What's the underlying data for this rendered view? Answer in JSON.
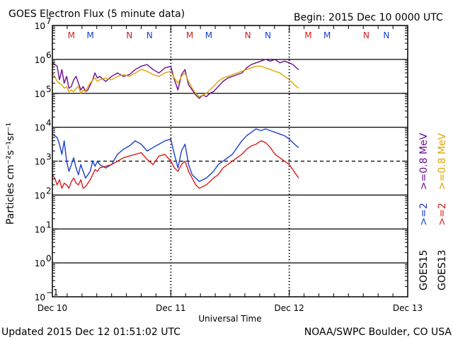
{
  "title": "GOES Electron Flux (5 minute data)",
  "begin": "Begin: 2015 Dec 10 0000 UTC",
  "updated": "Updated 2015 Dec 12 01:51:02 UTC",
  "credit": "NOAA/SWPC Boulder, CO USA",
  "colors": {
    "purple": "#6a0d91",
    "gold": "#e0a400",
    "blue": "#1a3fd0",
    "red": "#d81c1c",
    "black": "#000000"
  },
  "chart_data": {
    "type": "line",
    "title": "GOES Electron Flux (5 minute data)",
    "xlabel": "Universal Time",
    "ylabel": "Particles cm⁻²s⁻¹sr⁻¹",
    "xlim": [
      0,
      3
    ],
    "ylim": [
      -1,
      7
    ],
    "yscale": "log10",
    "x_ticks": [
      {
        "x": 0,
        "label": "Dec 10"
      },
      {
        "x": 1,
        "label": "Dec 11"
      },
      {
        "x": 2,
        "label": "Dec 12"
      },
      {
        "x": 3,
        "label": "Dec 13"
      }
    ],
    "y_ticks": [
      {
        "exp": 7,
        "label": "10",
        "sup": "7"
      },
      {
        "exp": 6,
        "label": "10",
        "sup": "6"
      },
      {
        "exp": 5,
        "label": "10",
        "sup": "5"
      },
      {
        "exp": 4,
        "label": "10",
        "sup": "4"
      },
      {
        "exp": 3,
        "label": "10",
        "sup": "3"
      },
      {
        "exp": 2,
        "label": "10",
        "sup": "2"
      },
      {
        "exp": 1,
        "label": "10",
        "sup": "1"
      },
      {
        "exp": 0,
        "label": "10",
        "sup": "0"
      },
      {
        "exp": -1,
        "label": "10",
        "sup": "−1"
      }
    ],
    "reference_lines": [
      {
        "exp": 3,
        "style": "dashed"
      }
    ],
    "markers": [
      {
        "x": 0.16,
        "label": "M",
        "color": "red"
      },
      {
        "x": 0.32,
        "label": "M",
        "color": "blue"
      },
      {
        "x": 0.65,
        "label": "N",
        "color": "red"
      },
      {
        "x": 0.82,
        "label": "N",
        "color": "blue"
      },
      {
        "x": 1.16,
        "label": "M",
        "color": "red"
      },
      {
        "x": 1.32,
        "label": "M",
        "color": "blue"
      },
      {
        "x": 1.65,
        "label": "N",
        "color": "red"
      },
      {
        "x": 1.82,
        "label": "N",
        "color": "blue"
      },
      {
        "x": 2.16,
        "label": "M",
        "color": "red"
      },
      {
        "x": 2.32,
        "label": "M",
        "color": "blue"
      },
      {
        "x": 2.65,
        "label": "N",
        "color": "red"
      },
      {
        "x": 2.82,
        "label": "N",
        "color": "blue"
      }
    ],
    "legend": [
      {
        "label": "GOES15",
        "part1": ">=2",
        "part2": ">=0.8 MeV",
        "color1": "blue",
        "color2": "purple"
      },
      {
        "label": "GOES13",
        "part1": ">=2",
        "part2": ">=0.8 MeV",
        "color1": "red",
        "color2": "gold"
      }
    ],
    "series": [
      {
        "name": "GOES15 >=0.8 MeV",
        "color": "purple",
        "x": [
          0.0,
          0.02,
          0.04,
          0.06,
          0.08,
          0.1,
          0.12,
          0.14,
          0.16,
          0.18,
          0.2,
          0.22,
          0.24,
          0.26,
          0.28,
          0.3,
          0.32,
          0.34,
          0.36,
          0.38,
          0.4,
          0.45,
          0.5,
          0.55,
          0.6,
          0.65,
          0.7,
          0.75,
          0.8,
          0.85,
          0.9,
          0.95,
          1.0,
          1.03,
          1.06,
          1.09,
          1.12,
          1.15,
          1.18,
          1.21,
          1.24,
          1.27,
          1.3,
          1.33,
          1.36,
          1.4,
          1.44,
          1.48,
          1.52,
          1.56,
          1.6,
          1.64,
          1.68,
          1.72,
          1.76,
          1.8,
          1.84,
          1.88,
          1.92,
          1.96,
          2.0,
          2.03,
          2.06,
          2.08
        ],
        "y": [
          5.9,
          5.85,
          5.8,
          5.4,
          5.7,
          5.3,
          5.5,
          5.15,
          5.2,
          5.4,
          5.5,
          5.3,
          5.1,
          5.2,
          5.05,
          5.1,
          5.25,
          5.4,
          5.6,
          5.45,
          5.5,
          5.35,
          5.5,
          5.6,
          5.5,
          5.55,
          5.7,
          5.8,
          5.85,
          5.7,
          5.6,
          5.75,
          5.8,
          5.4,
          5.1,
          5.55,
          5.7,
          5.25,
          5.1,
          4.95,
          4.85,
          4.95,
          4.9,
          5.0,
          5.05,
          5.2,
          5.35,
          5.45,
          5.5,
          5.55,
          5.6,
          5.75,
          5.85,
          5.9,
          5.95,
          6.0,
          5.95,
          6.0,
          5.9,
          5.95,
          5.9,
          5.85,
          5.75,
          5.7
        ]
      },
      {
        "name": "GOES13 >=0.8 MeV",
        "color": "gold",
        "x": [
          0.0,
          0.02,
          0.04,
          0.06,
          0.08,
          0.1,
          0.12,
          0.14,
          0.16,
          0.18,
          0.2,
          0.22,
          0.24,
          0.26,
          0.28,
          0.3,
          0.32,
          0.34,
          0.36,
          0.38,
          0.4,
          0.45,
          0.5,
          0.55,
          0.6,
          0.65,
          0.7,
          0.75,
          0.8,
          0.85,
          0.9,
          0.95,
          1.0,
          1.03,
          1.06,
          1.09,
          1.12,
          1.15,
          1.18,
          1.21,
          1.24,
          1.27,
          1.3,
          1.33,
          1.36,
          1.4,
          1.44,
          1.48,
          1.52,
          1.56,
          1.6,
          1.64,
          1.68,
          1.72,
          1.76,
          1.8,
          1.84,
          1.88,
          1.92,
          1.96,
          2.0,
          2.03,
          2.06,
          2.08
        ],
        "y": [
          5.6,
          5.5,
          5.35,
          5.3,
          5.25,
          5.15,
          5.2,
          5.05,
          5.1,
          5.05,
          5.15,
          5.2,
          5.0,
          5.1,
          5.05,
          5.2,
          5.3,
          5.4,
          5.45,
          5.35,
          5.4,
          5.45,
          5.4,
          5.5,
          5.55,
          5.5,
          5.6,
          5.7,
          5.65,
          5.55,
          5.5,
          5.6,
          5.65,
          5.45,
          5.3,
          5.5,
          5.6,
          5.35,
          5.15,
          5.0,
          4.9,
          4.95,
          5.0,
          5.1,
          5.2,
          5.35,
          5.45,
          5.5,
          5.55,
          5.6,
          5.65,
          5.7,
          5.75,
          5.8,
          5.8,
          5.75,
          5.7,
          5.65,
          5.6,
          5.5,
          5.4,
          5.3,
          5.2,
          5.15
        ]
      },
      {
        "name": "GOES15 >=2 MeV",
        "color": "blue",
        "x": [
          0.0,
          0.02,
          0.04,
          0.06,
          0.08,
          0.1,
          0.12,
          0.14,
          0.16,
          0.18,
          0.2,
          0.22,
          0.24,
          0.26,
          0.28,
          0.3,
          0.32,
          0.34,
          0.36,
          0.38,
          0.4,
          0.45,
          0.5,
          0.55,
          0.6,
          0.65,
          0.7,
          0.75,
          0.8,
          0.85,
          0.9,
          0.95,
          1.0,
          1.03,
          1.06,
          1.09,
          1.12,
          1.15,
          1.18,
          1.21,
          1.24,
          1.27,
          1.3,
          1.33,
          1.36,
          1.4,
          1.44,
          1.48,
          1.52,
          1.56,
          1.6,
          1.64,
          1.68,
          1.72,
          1.76,
          1.8,
          1.84,
          1.88,
          1.92,
          1.96,
          2.0,
          2.03,
          2.06,
          2.08
        ],
        "y": [
          3.8,
          3.75,
          3.7,
          3.5,
          3.2,
          3.6,
          3.0,
          2.7,
          2.9,
          3.1,
          2.8,
          2.6,
          2.9,
          2.7,
          2.5,
          2.6,
          2.7,
          3.0,
          2.85,
          3.0,
          2.9,
          2.8,
          2.9,
          3.2,
          3.35,
          3.45,
          3.6,
          3.5,
          3.3,
          3.4,
          3.5,
          3.6,
          3.65,
          3.2,
          2.8,
          3.3,
          3.5,
          2.9,
          2.6,
          2.5,
          2.4,
          2.45,
          2.5,
          2.6,
          2.7,
          2.9,
          3.0,
          3.1,
          3.2,
          3.4,
          3.6,
          3.75,
          3.85,
          3.95,
          3.9,
          3.95,
          3.9,
          3.85,
          3.8,
          3.75,
          3.65,
          3.55,
          3.45,
          3.4
        ]
      },
      {
        "name": "GOES13 >=2 MeV",
        "color": "red",
        "x": [
          0.0,
          0.02,
          0.04,
          0.06,
          0.08,
          0.1,
          0.12,
          0.14,
          0.16,
          0.18,
          0.2,
          0.22,
          0.24,
          0.26,
          0.28,
          0.3,
          0.32,
          0.34,
          0.36,
          0.38,
          0.4,
          0.45,
          0.5,
          0.55,
          0.6,
          0.65,
          0.7,
          0.75,
          0.8,
          0.85,
          0.9,
          0.95,
          1.0,
          1.03,
          1.06,
          1.09,
          1.12,
          1.15,
          1.18,
          1.21,
          1.24,
          1.27,
          1.3,
          1.33,
          1.36,
          1.4,
          1.44,
          1.48,
          1.52,
          1.56,
          1.6,
          1.64,
          1.68,
          1.72,
          1.76,
          1.8,
          1.84,
          1.88,
          1.92,
          1.96,
          2.0,
          2.03,
          2.06,
          2.08
        ],
        "y": [
          2.6,
          2.5,
          2.3,
          2.45,
          2.2,
          2.35,
          2.3,
          2.2,
          2.4,
          2.5,
          2.35,
          2.3,
          2.45,
          2.2,
          2.25,
          2.35,
          2.45,
          2.6,
          2.75,
          2.7,
          2.8,
          2.85,
          2.9,
          3.0,
          3.1,
          3.15,
          3.2,
          3.25,
          3.05,
          2.9,
          3.15,
          3.2,
          3.0,
          2.8,
          2.7,
          2.9,
          3.0,
          2.7,
          2.5,
          2.3,
          2.2,
          2.25,
          2.3,
          2.4,
          2.5,
          2.6,
          2.8,
          2.9,
          3.0,
          3.1,
          3.2,
          3.35,
          3.45,
          3.5,
          3.6,
          3.55,
          3.4,
          3.2,
          3.1,
          3.0,
          2.9,
          2.75,
          2.6,
          2.5
        ]
      }
    ]
  }
}
